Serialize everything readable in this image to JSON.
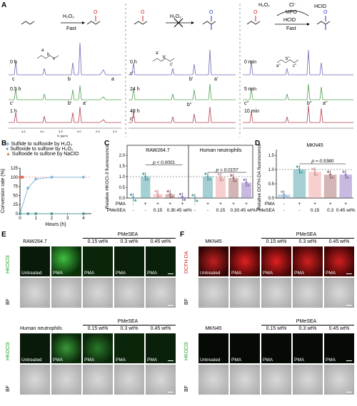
{
  "panels": {
    "A": "A",
    "B": "B",
    "C": "C",
    "D": "D",
    "E": "E",
    "F": "F"
  },
  "panel_a": {
    "scheme1": {
      "reagent": "H₂O₂",
      "cond": "Fast",
      "o": "O"
    },
    "scheme2": {
      "reagent": "H₂O₂",
      "o": "O"
    },
    "scheme3": {
      "h2o2": "H₂O₂",
      "cl": "Cl⁻",
      "mpo": "MPO",
      "hclo": "HClO",
      "hclo2": "HClO",
      "cond": "Fast",
      "o": "O"
    },
    "col1_times": [
      "0 h",
      "0.5 h",
      "1 h"
    ],
    "col2_times": [
      "0 h",
      "24 h",
      "48 h"
    ],
    "col3_times": [
      "0 min",
      "5 min",
      "10 min"
    ],
    "peaklabels1": {
      "a": "a",
      "b": "b",
      "c": "c",
      "a1": "a'",
      "b1": "b'",
      "c1": "c'"
    },
    "peaklabels2": {
      "a1": "a'",
      "b1": "b'",
      "c1": "c'",
      "b2": "b''",
      "c2": "c''"
    },
    "peaklabels3": {
      "a2": "a''",
      "b2": "b''",
      "c2": "c''"
    },
    "struct_letters": {
      "a": "a",
      "b": "b",
      "c": "c",
      "a1": "a'",
      "b1": "b'",
      "c1": "c'",
      "a2": "a''",
      "b2": "b''",
      "c2": "c''"
    },
    "ppm_ticks": [
      "4.5",
      "4.0",
      "3.5",
      "3.0",
      "2.5",
      "2.0"
    ],
    "ppm_label": "f1 (ppm)"
  },
  "panel_b": {
    "chart_data": {
      "type": "line",
      "legend": [
        "Sulfide to sulfoxide by H₂O₂",
        "Sulfoxide to sulfone by H₂O₂",
        "Sulfoxide to sulfone by NaClO"
      ],
      "legend_colors": [
        "#8ab8d8",
        "#5a9a9a",
        "#e07060"
      ],
      "xlabel": "Hours (h)",
      "ylabel": "Conversion rate (%)",
      "xlim": [
        0,
        4.5
      ],
      "ylim": [
        0,
        125
      ],
      "xticks": [
        "0",
        "1",
        "2",
        "3",
        "4"
      ],
      "yticks": [
        "0",
        "25",
        "50",
        "75",
        "100",
        "125"
      ],
      "series": [
        {
          "x": [
            0,
            0.5,
            1,
            2,
            4
          ],
          "y": [
            0,
            70,
            95,
            100,
            100
          ]
        },
        {
          "x": [
            0,
            0.5,
            1,
            2,
            4
          ],
          "y": [
            0,
            0,
            0,
            0,
            0
          ]
        },
        {
          "x": [
            0,
            0.083,
            0.167
          ],
          "y": [
            100,
            100,
            100
          ]
        }
      ]
    }
  },
  "panel_c": {
    "chart_data": {
      "type": "bar",
      "groups": [
        "RAW264.7",
        "Human neutrophils"
      ],
      "ylabel": "Relative HKOCl-3 fluorescence",
      "yticks": [
        "0.0",
        "0.5",
        "1.0",
        "1.5",
        "2.0"
      ],
      "ylim": [
        0,
        2.0
      ],
      "pvalues": [
        "p < 0.0001",
        "p = 0.0157"
      ],
      "pma": [
        "-",
        "+",
        "+",
        "+",
        "+"
      ],
      "pmesea": [
        "-",
        "-",
        "0.15",
        "0.3",
        "0.45 wt%"
      ],
      "row_labels": [
        "PMA",
        "PMeSEA"
      ],
      "values_raw": [
        0.02,
        1.0,
        0.18,
        0.18,
        0.05
      ],
      "values_neu": [
        0.0,
        1.0,
        0.98,
        0.93,
        0.72
      ],
      "colors": [
        "#5aaab0",
        "#5aaab0",
        "#f0a8a8",
        "#b07878",
        "#9a80c8"
      ]
    }
  },
  "panel_d": {
    "chart_data": {
      "type": "bar",
      "title": "MKN45",
      "ylabel": "Relative DCFH-DA fluorescence",
      "yticks": [
        "0.0",
        "0.5",
        "1.0",
        "1.5"
      ],
      "ylim": [
        0,
        1.5
      ],
      "pvalue": "p = 0.5380",
      "pma": [
        "-",
        "+",
        "+",
        "+",
        "+"
      ],
      "pmesea": [
        "-",
        "-",
        "0.15",
        "0.3",
        "0.45 wt%"
      ],
      "row_labels": [
        "PMA",
        "PMeSEA"
      ],
      "values": [
        0.12,
        1.0,
        0.92,
        0.82,
        0.82
      ],
      "colors": [
        "#8ab0d0",
        "#5aaab0",
        "#f0a8a8",
        "#b07878",
        "#9a80c8"
      ]
    }
  },
  "panel_e": {
    "title1": "RAW264.7",
    "title2": "Human neutrophils",
    "pmesea": "PMeSEA",
    "concs": [
      "0.15 wt%",
      "0.3 wt%",
      "0.45 wt%"
    ],
    "cells": [
      "Untreated",
      "PMA",
      "PMA",
      "PMA",
      "PMA"
    ],
    "row_fl": "HKOCl3",
    "row_bf": "BF"
  },
  "panel_f": {
    "title1": "MKN45",
    "title2": "MKN45",
    "pmesea": "PMeSEA",
    "concs": [
      "0.15 wt%",
      "0.3 wt%",
      "0.45 wt%"
    ],
    "cells": [
      "Untreated",
      "PMA",
      "PMA",
      "PMA",
      "PMA"
    ],
    "row_fl1": "DCFH-DA",
    "row_fl2": "HKOCl3",
    "row_bf": "BF"
  }
}
